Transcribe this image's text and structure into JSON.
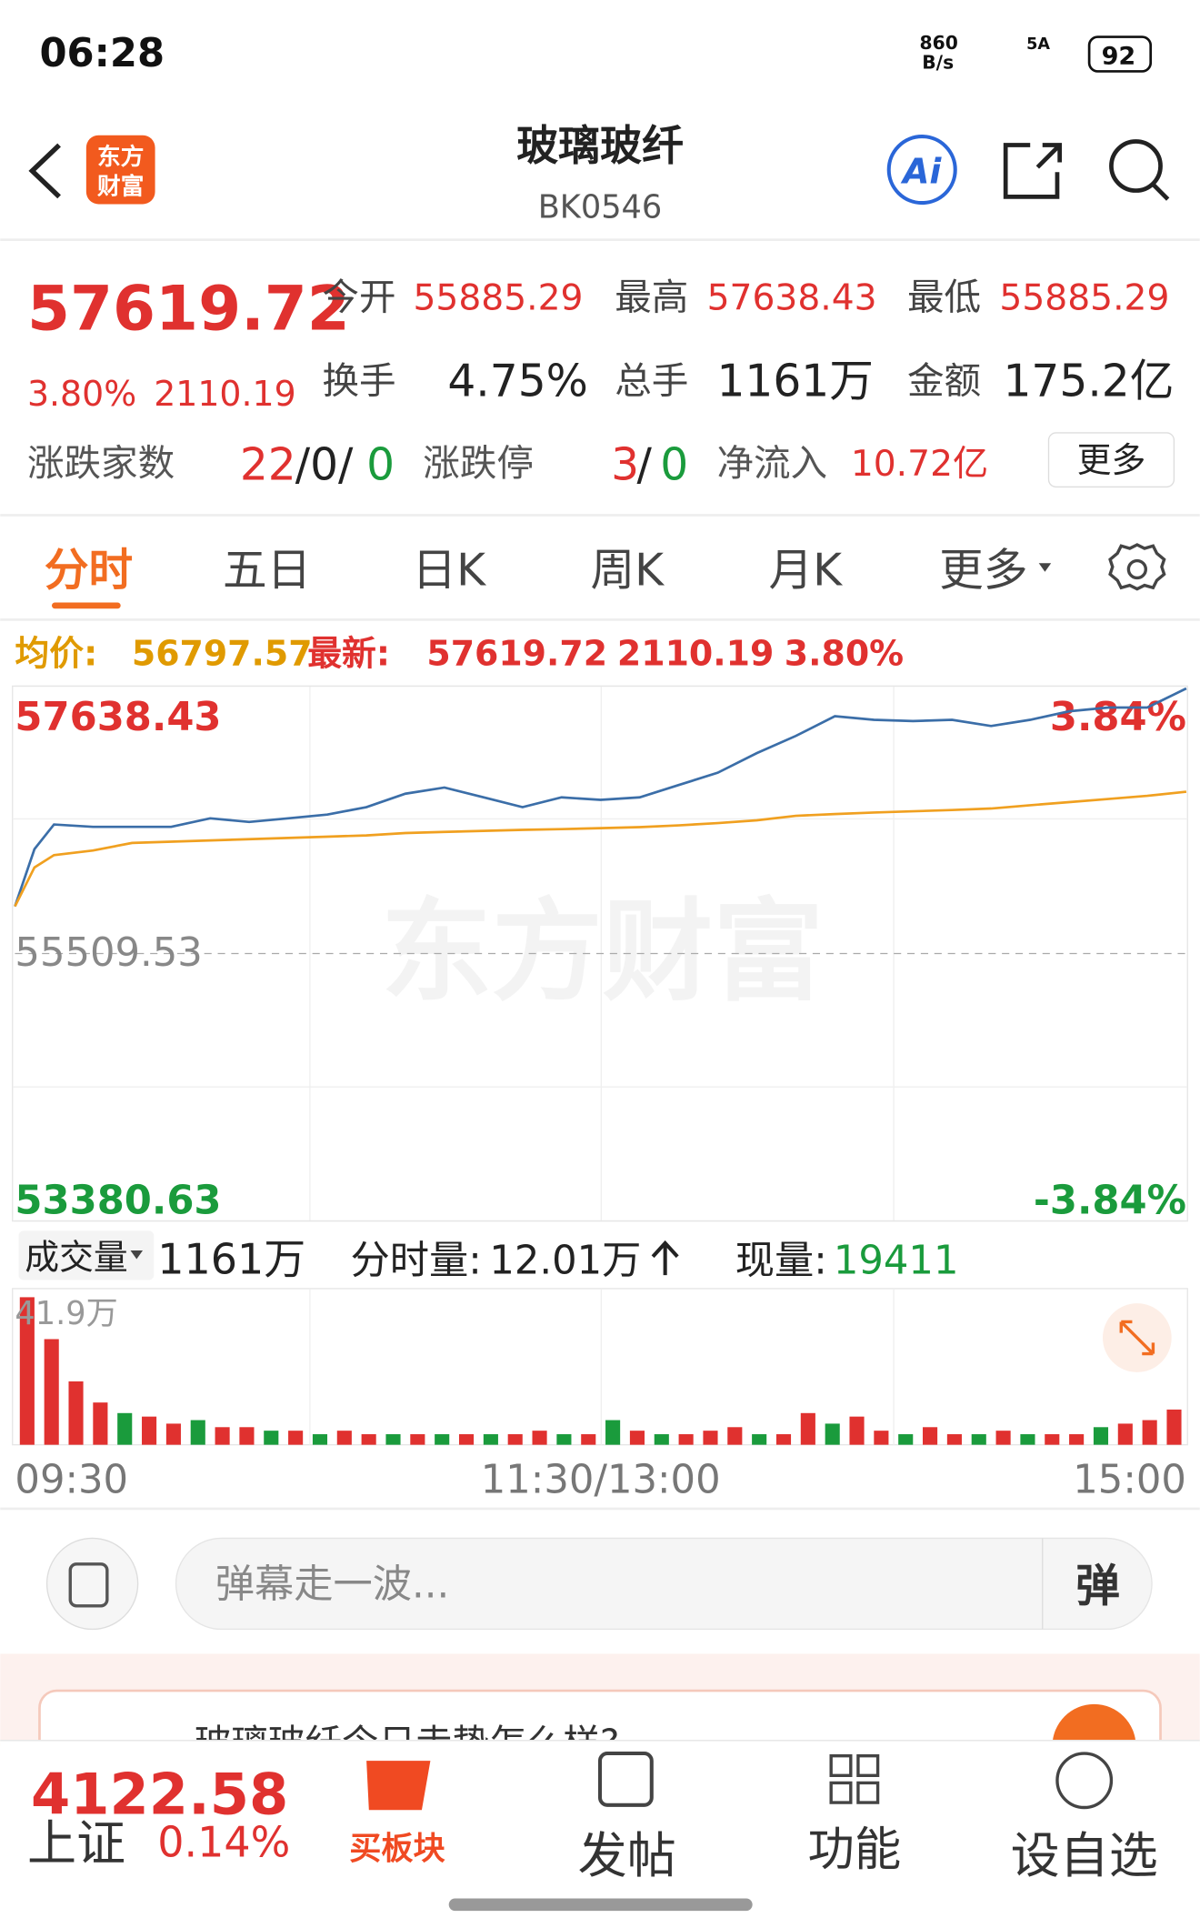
{
  "status_bar": {
    "time": "06:28",
    "net_speed": "860",
    "net_unit": "B/s",
    "signal": "5A",
    "battery": "92"
  },
  "header": {
    "logo": [
      "东方",
      "财富"
    ],
    "title": "玻璃玻纤",
    "code": "BK0546",
    "ai": "Ai"
  },
  "quote": {
    "price": "57619.72",
    "change_pct": "3.80%",
    "change": "2110.19",
    "open_label": "今开",
    "open": "55885.29",
    "high_label": "最高",
    "high": "57638.43",
    "low_label": "最低",
    "low": "55885.29",
    "turnover_label": "换手",
    "turnover": "4.75%",
    "volume_label": "总手",
    "volume": "1161万",
    "amount_label": "金额",
    "amount": "175.2亿",
    "updown_label": "涨跌家数",
    "up": "22",
    "flat": "/0/",
    "down": "0",
    "limit_label": "涨跌停",
    "limit_up": "3",
    "limit_sep": "/",
    "limit_down": "0",
    "inflow_label": "净流入",
    "inflow": "10.72亿",
    "more": "更多"
  },
  "tabs": [
    "分时",
    "五日",
    "日K",
    "周K",
    "月K",
    "更多"
  ],
  "info": {
    "avg_label": "均价:",
    "avg": "56797.57",
    "latest_label": "最新:",
    "latest": "57619.72",
    "change": "2110.19",
    "pct": "3.80%"
  },
  "chart_data": [
    {
      "type": "line",
      "watermark": "东方财富",
      "x": [
        0,
        4,
        8,
        16,
        24,
        32,
        40,
        48,
        56,
        64,
        72,
        80,
        88,
        96,
        104,
        112,
        120,
        128,
        136,
        144,
        152,
        160,
        168,
        176,
        184,
        192,
        200,
        208,
        216,
        224,
        232,
        240
      ],
      "xlim": [
        0,
        240
      ],
      "xticks": [
        {
          "value": 0,
          "label": "09:30"
        },
        {
          "value": 120,
          "label": "11:30/13:00"
        },
        {
          "value": 240,
          "label": "15:00"
        }
      ],
      "ylim": [
        53380.63,
        57638.43
      ],
      "yticks": [
        53380.63,
        55509.53,
        57638.43
      ],
      "y2lim": [
        -3.84,
        3.84
      ],
      "y2ticks": [
        {
          "value": -3.84,
          "label": "-3.84%"
        },
        {
          "value": 3.84,
          "label": "3.84%"
        }
      ],
      "series": [
        {
          "name": "最新",
          "color": "#3b6ea8",
          "values": [
            55885,
            56341,
            56537,
            56518,
            56518,
            56518,
            56586,
            56557,
            56586,
            56616,
            56675,
            56782,
            56831,
            56753,
            56675,
            56753,
            56733,
            56753,
            56851,
            56949,
            57105,
            57242,
            57399,
            57370,
            57360,
            57370,
            57321,
            57370,
            57438,
            57468,
            57468,
            57619.72
          ]
        },
        {
          "name": "均价",
          "color": "#f0a020",
          "values": [
            55885,
            56195,
            56293,
            56330,
            56390,
            56400,
            56410,
            56420,
            56430,
            56440,
            56450,
            56469,
            56478,
            56486,
            56494,
            56500,
            56508,
            56516,
            56530,
            56548,
            56570,
            56606,
            56620,
            56632,
            56642,
            56652,
            56664,
            56690,
            56715,
            56740,
            56765,
            56797.57
          ]
        }
      ]
    },
    {
      "type": "bar",
      "label": "成交量",
      "total": "1161万",
      "tick_label": "分时量:",
      "tick_volume": "12.01万",
      "now_label": "现量:",
      "now_volume": "19411",
      "ylim": [
        0,
        41.9
      ],
      "yticks": [
        {
          "value": 41.9,
          "label": "41.9万"
        }
      ],
      "values": [
        41.9,
        30,
        18,
        12,
        9,
        8,
        6,
        7,
        5,
        5,
        4,
        4,
        3,
        4,
        3,
        3,
        3,
        3,
        3,
        3,
        3,
        4,
        3,
        3,
        7,
        4,
        3,
        3,
        4,
        5,
        3,
        3,
        9,
        6,
        8,
        4,
        3,
        5,
        3,
        3,
        4,
        3,
        3,
        3,
        5,
        6,
        7,
        10
      ],
      "colors": [
        "#e0312f",
        "#e0312f",
        "#e0312f",
        "#e0312f",
        "#1a9b3c",
        "#e0312f",
        "#e0312f",
        "#1a9b3c",
        "#e0312f",
        "#e0312f",
        "#1a9b3c",
        "#e0312f",
        "#1a9b3c",
        "#e0312f",
        "#e0312f",
        "#1a9b3c",
        "#e0312f",
        "#1a9b3c",
        "#e0312f",
        "#1a9b3c",
        "#e0312f",
        "#e0312f",
        "#1a9b3c",
        "#e0312f",
        "#1a9b3c",
        "#e0312f",
        "#1a9b3c",
        "#e0312f",
        "#e0312f",
        "#e0312f",
        "#1a9b3c",
        "#e0312f",
        "#e0312f",
        "#1a9b3c",
        "#e0312f",
        "#e0312f",
        "#1a9b3c",
        "#e0312f",
        "#e0312f",
        "#1a9b3c",
        "#e0312f",
        "#1a9b3c",
        "#e0312f",
        "#e0312f",
        "#1a9b3c",
        "#e0312f",
        "#e0312f",
        "#e0312f"
      ]
    }
  ],
  "comment": {
    "placeholder": "弹幕走一波...",
    "button": "弹"
  },
  "ai_banner": {
    "text": "玻璃玻纤今日走势怎么样?"
  },
  "bottom_nav": {
    "index_value": "4122.58",
    "index_name": "上证",
    "index_pct": "0.14%",
    "items": [
      "买板块",
      "发帖",
      "功能",
      "设自选"
    ]
  }
}
